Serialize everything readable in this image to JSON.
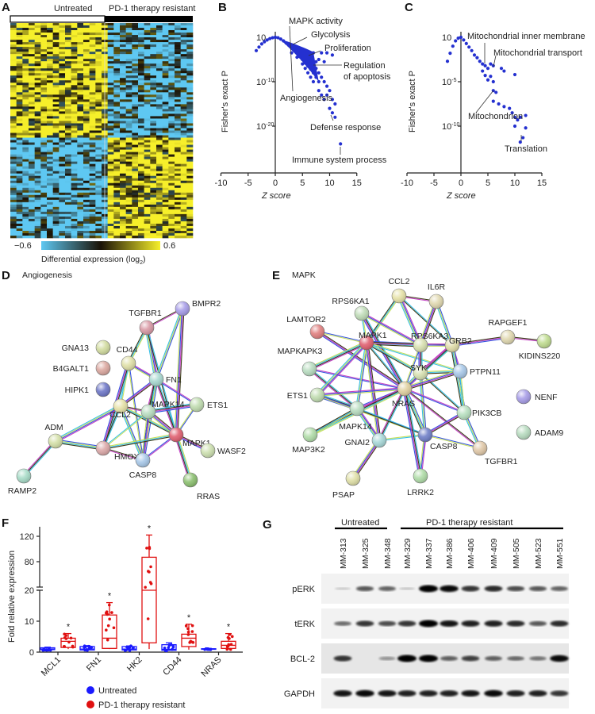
{
  "panels": {
    "A": {
      "label": "A",
      "groups": [
        "Untreated",
        "PD-1 therapy resistant"
      ],
      "scale_min": "−0.6",
      "scale_max": "0.6",
      "scale_title": "Differential expression (log",
      "scale_title_sub": "2",
      "scale_title_end": ")",
      "colors": {
        "low": "#5ec8f2",
        "mid": "#1a1206",
        "high": "#f6ef2a"
      }
    },
    "B": {
      "label": "B"
    },
    "C": {
      "label": "C"
    },
    "D": {
      "label": "D",
      "title": "Angiogenesis"
    },
    "E": {
      "label": "E",
      "title": "MAPK"
    },
    "F": {
      "label": "F"
    },
    "G": {
      "label": "G",
      "groups": [
        "Untreated",
        "PD-1 therapy resistant"
      ],
      "lanes": [
        "MM-313",
        "MM-325",
        "MM-348",
        "MM-329",
        "MM-337",
        "MM-386",
        "MM-406",
        "MM-409",
        "MM-505",
        "MM-523",
        "MM-551"
      ],
      "blots": [
        {
          "name": "pERK",
          "intensity": [
            0.03,
            0.55,
            0.5,
            0.05,
            1.0,
            0.9,
            0.7,
            0.75,
            0.6,
            0.55,
            0.5
          ]
        },
        {
          "name": "tERK",
          "intensity": [
            0.45,
            0.7,
            0.6,
            0.7,
            1.0,
            0.85,
            0.8,
            0.8,
            0.75,
            0.55,
            0.75
          ]
        },
        {
          "name": "BCL-2",
          "intensity": [
            0.7,
            0.0,
            0.25,
            1.0,
            1.0,
            0.5,
            0.65,
            0.5,
            0.45,
            0.4,
            0.9
          ]
        },
        {
          "name": "GAPDH",
          "intensity": [
            0.85,
            0.9,
            0.85,
            0.8,
            0.8,
            0.8,
            0.85,
            0.9,
            0.8,
            0.8,
            0.7
          ]
        }
      ]
    }
  },
  "chart_data": [
    {
      "panel": "B",
      "type": "scatter",
      "xlabel": "Z score",
      "ylabel": "Fisher's exact P",
      "xlim": [
        -10,
        15
      ],
      "x_ticks": [
        "-10",
        "-5",
        "0",
        "5",
        "10",
        "15"
      ],
      "y_scale": "log",
      "y_ticks": [
        {
          "base": "10",
          "exp": ""
        },
        {
          "base": "10",
          "exp": "-10"
        },
        {
          "base": "10",
          "exp": "-20"
        }
      ],
      "point_color": "#2430d0",
      "points_z_log10p": [
        [
          -3.5,
          -3
        ],
        [
          -3,
          -2.2
        ],
        [
          -2.5,
          -1.5
        ],
        [
          -2,
          -1
        ],
        [
          -1.5,
          -0.6
        ],
        [
          -1,
          -0.3
        ],
        [
          -0.5,
          -0.1
        ],
        [
          0,
          0
        ],
        [
          0.5,
          -0.1
        ],
        [
          1,
          -0.4
        ],
        [
          1.5,
          -0.8
        ],
        [
          2,
          -1.3
        ],
        [
          2.5,
          -1.8
        ],
        [
          3,
          -2.4
        ],
        [
          3.5,
          -3
        ],
        [
          4,
          -3.6
        ],
        [
          4.5,
          -4.3
        ],
        [
          5,
          -5
        ],
        [
          5.5,
          -5.8
        ],
        [
          6,
          -6.5
        ],
        [
          6.5,
          -7.2
        ],
        [
          7,
          -8
        ],
        [
          7.5,
          -9
        ],
        [
          8,
          -10
        ],
        [
          3,
          -3.5
        ],
        [
          4,
          -4.5
        ],
        [
          5,
          -6
        ],
        [
          5.5,
          -7
        ],
        [
          6,
          -8
        ],
        [
          6.5,
          -9
        ],
        [
          7,
          -10
        ],
        [
          7,
          -6
        ],
        [
          7.5,
          -7
        ],
        [
          8,
          -8
        ],
        [
          8.5,
          -9
        ],
        [
          9,
          -10
        ],
        [
          9.5,
          -11
        ],
        [
          10,
          -12
        ],
        [
          8,
          -12
        ],
        [
          8.5,
          -13
        ],
        [
          9,
          -14
        ],
        [
          9.5,
          -13
        ],
        [
          10.5,
          -14
        ],
        [
          11,
          -15
        ],
        [
          10,
          -16
        ],
        [
          10.5,
          -17
        ],
        [
          11,
          -18
        ],
        [
          7,
          -3.5
        ],
        [
          8.5,
          -3.5
        ],
        [
          9.5,
          -3.5
        ],
        [
          10.5,
          -4
        ],
        [
          8,
          -5
        ],
        [
          9,
          -5.5
        ],
        [
          6,
          -4
        ],
        [
          6.5,
          -5
        ],
        [
          7.5,
          -5.5
        ],
        [
          12,
          -24
        ]
      ],
      "annotations": [
        "MAPK activity",
        "Glycolysis",
        "Proliferation",
        "Regulation",
        "of apoptosis",
        "Angiogenesis",
        "Defense response",
        "Immune system process"
      ]
    },
    {
      "panel": "C",
      "type": "scatter",
      "xlabel": "Z score",
      "ylabel": "Fisher's exact P",
      "xlim": [
        -10,
        15
      ],
      "x_ticks": [
        "-10",
        "-5",
        "0",
        "5",
        "10",
        "15"
      ],
      "y_scale": "log",
      "y_ticks": [
        {
          "base": "10",
          "exp": ""
        },
        {
          "base": "10",
          "exp": "-5"
        },
        {
          "base": "10",
          "exp": "-10"
        }
      ],
      "point_color": "#2430d0",
      "points_z_log10p": [
        [
          -2.5,
          -2.7
        ],
        [
          -2,
          -1.8
        ],
        [
          -1.5,
          -1
        ],
        [
          -1,
          -0.4
        ],
        [
          -0.5,
          -0.1
        ],
        [
          0,
          0
        ],
        [
          0.5,
          -0.3
        ],
        [
          1,
          -0.7
        ],
        [
          1.5,
          -1.1
        ],
        [
          2,
          -1.5
        ],
        [
          2.5,
          -2
        ],
        [
          3,
          -2.3
        ],
        [
          3.5,
          -2.7
        ],
        [
          4,
          -3
        ],
        [
          4.5,
          -3.2
        ],
        [
          5,
          -3.5
        ],
        [
          5.5,
          -3
        ],
        [
          6,
          -3.2
        ],
        [
          4,
          -3.8
        ],
        [
          4.5,
          -4.3
        ],
        [
          5,
          -4.8
        ],
        [
          5.5,
          -4.4
        ],
        [
          6,
          -5
        ],
        [
          7.5,
          -3.5
        ],
        [
          8,
          -3.8
        ],
        [
          10,
          -4.2
        ],
        [
          6,
          -6
        ],
        [
          6.5,
          -6.2
        ],
        [
          6,
          -7.2
        ],
        [
          7,
          -7.5
        ],
        [
          8,
          -7.8
        ],
        [
          9,
          -8
        ],
        [
          9.5,
          -8.5
        ],
        [
          10,
          -9
        ],
        [
          10.5,
          -9.3
        ],
        [
          11,
          -9
        ],
        [
          12,
          -8.8
        ],
        [
          10,
          -10
        ],
        [
          12,
          -10.2
        ],
        [
          11.5,
          -11.3
        ],
        [
          11,
          -11.8
        ]
      ],
      "annotations": [
        "Mitochondrial inner membrane",
        "Mitochondrial transport",
        "Mitochondrion",
        "Translation"
      ]
    },
    {
      "panel": "F",
      "type": "box",
      "ylabel": "Fold relative expression",
      "y_ticks_lower": [
        "0",
        "10",
        "20"
      ],
      "y_ticks_upper": [
        "80",
        "120"
      ],
      "y_axis_break": [
        20,
        40
      ],
      "categories": [
        "MCL1",
        "FN1",
        "HK2",
        "CD44",
        "NRAS"
      ],
      "significance": [
        "*",
        "*",
        "*",
        "*",
        "*"
      ],
      "series": [
        {
          "name": "Untreated",
          "color": "#1a1aff",
          "boxes": [
            {
              "min": 0.6,
              "q1": 0.8,
              "median": 1.0,
              "q3": 1.4,
              "max": 1.6
            },
            {
              "min": 0.5,
              "q1": 0.7,
              "median": 1.0,
              "q3": 1.8,
              "max": 2.1
            },
            {
              "min": 0.5,
              "q1": 0.7,
              "median": 1.0,
              "q3": 1.8,
              "max": 2.0
            },
            {
              "min": 0.4,
              "q1": 0.6,
              "median": 0.9,
              "q3": 2.4,
              "max": 3.0
            },
            {
              "min": 0.8,
              "q1": 0.9,
              "median": 1.0,
              "q3": 1.1,
              "max": 1.2
            }
          ]
        },
        {
          "name": "PD-1 therapy resistant",
          "color": "#e01010",
          "boxes": [
            {
              "min": 1.0,
              "q1": 1.5,
              "median": 3.5,
              "q3": 4.5,
              "max": 6.0
            },
            {
              "min": 1.0,
              "q1": 1.2,
              "median": 4.5,
              "q3": 12.0,
              "max": 16.0
            },
            {
              "min": 1.0,
              "q1": 3.0,
              "median": 20.0,
              "q3": 87.0,
              "max": 122.0
            },
            {
              "min": 0.8,
              "q1": 1.8,
              "median": 4.5,
              "q3": 5.8,
              "max": 9.0
            },
            {
              "min": 0.8,
              "q1": 1.2,
              "median": 2.2,
              "q3": 3.5,
              "max": 6.0
            }
          ]
        }
      ],
      "legend": "bottom"
    }
  ],
  "networks": {
    "D": {
      "nodes": [
        {
          "name": "BMPR2",
          "color": "#a89ee8"
        },
        {
          "name": "TGFBR1",
          "color": "#d99aa6"
        },
        {
          "name": "GNA13",
          "color": "#d2dca0"
        },
        {
          "name": "B4GALT1",
          "color": "#dba8a0"
        },
        {
          "name": "HIPK1",
          "color": "#6f78c8"
        },
        {
          "name": "CD44",
          "color": "#e0e0a8"
        },
        {
          "name": "FN1",
          "color": "#a8d8d0"
        },
        {
          "name": "CCL2",
          "color": "#e6e2a8"
        },
        {
          "name": "MAPK14",
          "color": "#b8dcc0"
        },
        {
          "name": "ETS1",
          "color": "#c0dcb0"
        },
        {
          "name": "MAPK1",
          "color": "#e06070"
        },
        {
          "name": "ADM",
          "color": "#d4e0a8"
        },
        {
          "name": "RAMP2",
          "color": "#a8dcc8"
        },
        {
          "name": "HMOX1",
          "color": "#dba8a8"
        },
        {
          "name": "WASF2",
          "color": "#cde0b0"
        },
        {
          "name": "CASP8",
          "color": "#a8c8e8"
        },
        {
          "name": "RRAS",
          "color": "#8cc070"
        }
      ],
      "edges": [
        [
          1,
          0
        ],
        [
          1,
          5
        ],
        [
          1,
          6
        ],
        [
          1,
          10
        ],
        [
          0,
          6
        ],
        [
          0,
          10
        ],
        [
          5,
          7
        ],
        [
          5,
          6
        ],
        [
          5,
          13
        ],
        [
          5,
          15
        ],
        [
          6,
          7
        ],
        [
          6,
          8
        ],
        [
          6,
          9
        ],
        [
          6,
          10
        ],
        [
          6,
          15
        ],
        [
          7,
          8
        ],
        [
          7,
          10
        ],
        [
          7,
          11
        ],
        [
          7,
          13
        ],
        [
          7,
          15
        ],
        [
          8,
          10
        ],
        [
          8,
          13
        ],
        [
          8,
          15
        ],
        [
          8,
          9
        ],
        [
          9,
          10
        ],
        [
          10,
          14
        ],
        [
          10,
          16
        ],
        [
          10,
          15
        ],
        [
          11,
          12
        ],
        [
          11,
          13
        ],
        [
          13,
          15
        ],
        [
          13,
          10
        ]
      ]
    },
    "E": {
      "nodes": [
        {
          "name": "CCL2",
          "color": "#e6e2a8"
        },
        {
          "name": "IL6R",
          "color": "#e0d8b0"
        },
        {
          "name": "RPS6KA1",
          "color": "#c0dcb8"
        },
        {
          "name": "LAMTOR2",
          "color": "#e08080"
        },
        {
          "name": "MAPKAPK3",
          "color": "#b8dcc0"
        },
        {
          "name": "MAPK1",
          "color": "#e06070"
        },
        {
          "name": "RPS6KA3",
          "color": "#d8e0b0"
        },
        {
          "name": "GRB2",
          "color": "#e0dca8"
        },
        {
          "name": "RAPGEF1",
          "color": "#e0d8b0"
        },
        {
          "name": "KIDINS220",
          "color": "#c0dc90"
        },
        {
          "name": "SYK",
          "color": "#d6e0b0"
        },
        {
          "name": "PTPN11",
          "color": "#a8c8e8"
        },
        {
          "name": "ETS1",
          "color": "#c0dcb0"
        },
        {
          "name": "NRAS",
          "color": "#e0d0a0"
        },
        {
          "name": "MAPK14",
          "color": "#b8dcc0"
        },
        {
          "name": "MAP3K2",
          "color": "#b0dca8"
        },
        {
          "name": "PIK3CB",
          "color": "#b8e0c0"
        },
        {
          "name": "NENF",
          "color": "#a89ee8"
        },
        {
          "name": "ADAM9",
          "color": "#b8dcc0"
        },
        {
          "name": "GNAI2",
          "color": "#a8d8d8"
        },
        {
          "name": "CASP8",
          "color": "#7080c8"
        },
        {
          "name": "TGFBR1",
          "color": "#e0c8a8"
        },
        {
          "name": "PSAP",
          "color": "#e0e0a8"
        },
        {
          "name": "LRRK2",
          "color": "#b0dca8"
        }
      ],
      "edges": [
        [
          0,
          1
        ],
        [
          0,
          5
        ],
        [
          0,
          6
        ],
        [
          0,
          7
        ],
        [
          1,
          7
        ],
        [
          1,
          6
        ],
        [
          2,
          5
        ],
        [
          2,
          6
        ],
        [
          2,
          13
        ],
        [
          3,
          5
        ],
        [
          3,
          13
        ],
        [
          4,
          5
        ],
        [
          4,
          13
        ],
        [
          4,
          14
        ],
        [
          5,
          6
        ],
        [
          5,
          7
        ],
        [
          5,
          10
        ],
        [
          5,
          12
        ],
        [
          5,
          13
        ],
        [
          5,
          14
        ],
        [
          5,
          19
        ],
        [
          5,
          11
        ],
        [
          6,
          7
        ],
        [
          6,
          10
        ],
        [
          6,
          13
        ],
        [
          7,
          8
        ],
        [
          7,
          10
        ],
        [
          7,
          11
        ],
        [
          7,
          13
        ],
        [
          7,
          16
        ],
        [
          8,
          9
        ],
        [
          10,
          11
        ],
        [
          10,
          13
        ],
        [
          10,
          16
        ],
        [
          10,
          20
        ],
        [
          11,
          13
        ],
        [
          11,
          16
        ],
        [
          12,
          13
        ],
        [
          12,
          14
        ],
        [
          12,
          20
        ],
        [
          13,
          14
        ],
        [
          13,
          15
        ],
        [
          13,
          16
        ],
        [
          13,
          19
        ],
        [
          13,
          20
        ],
        [
          13,
          21
        ],
        [
          14,
          15
        ],
        [
          14,
          19
        ],
        [
          14,
          20
        ],
        [
          16,
          21
        ],
        [
          19,
          22
        ],
        [
          19,
          20
        ],
        [
          20,
          23
        ],
        [
          13,
          23
        ],
        [
          20,
          21
        ],
        [
          16,
          20
        ]
      ]
    }
  }
}
